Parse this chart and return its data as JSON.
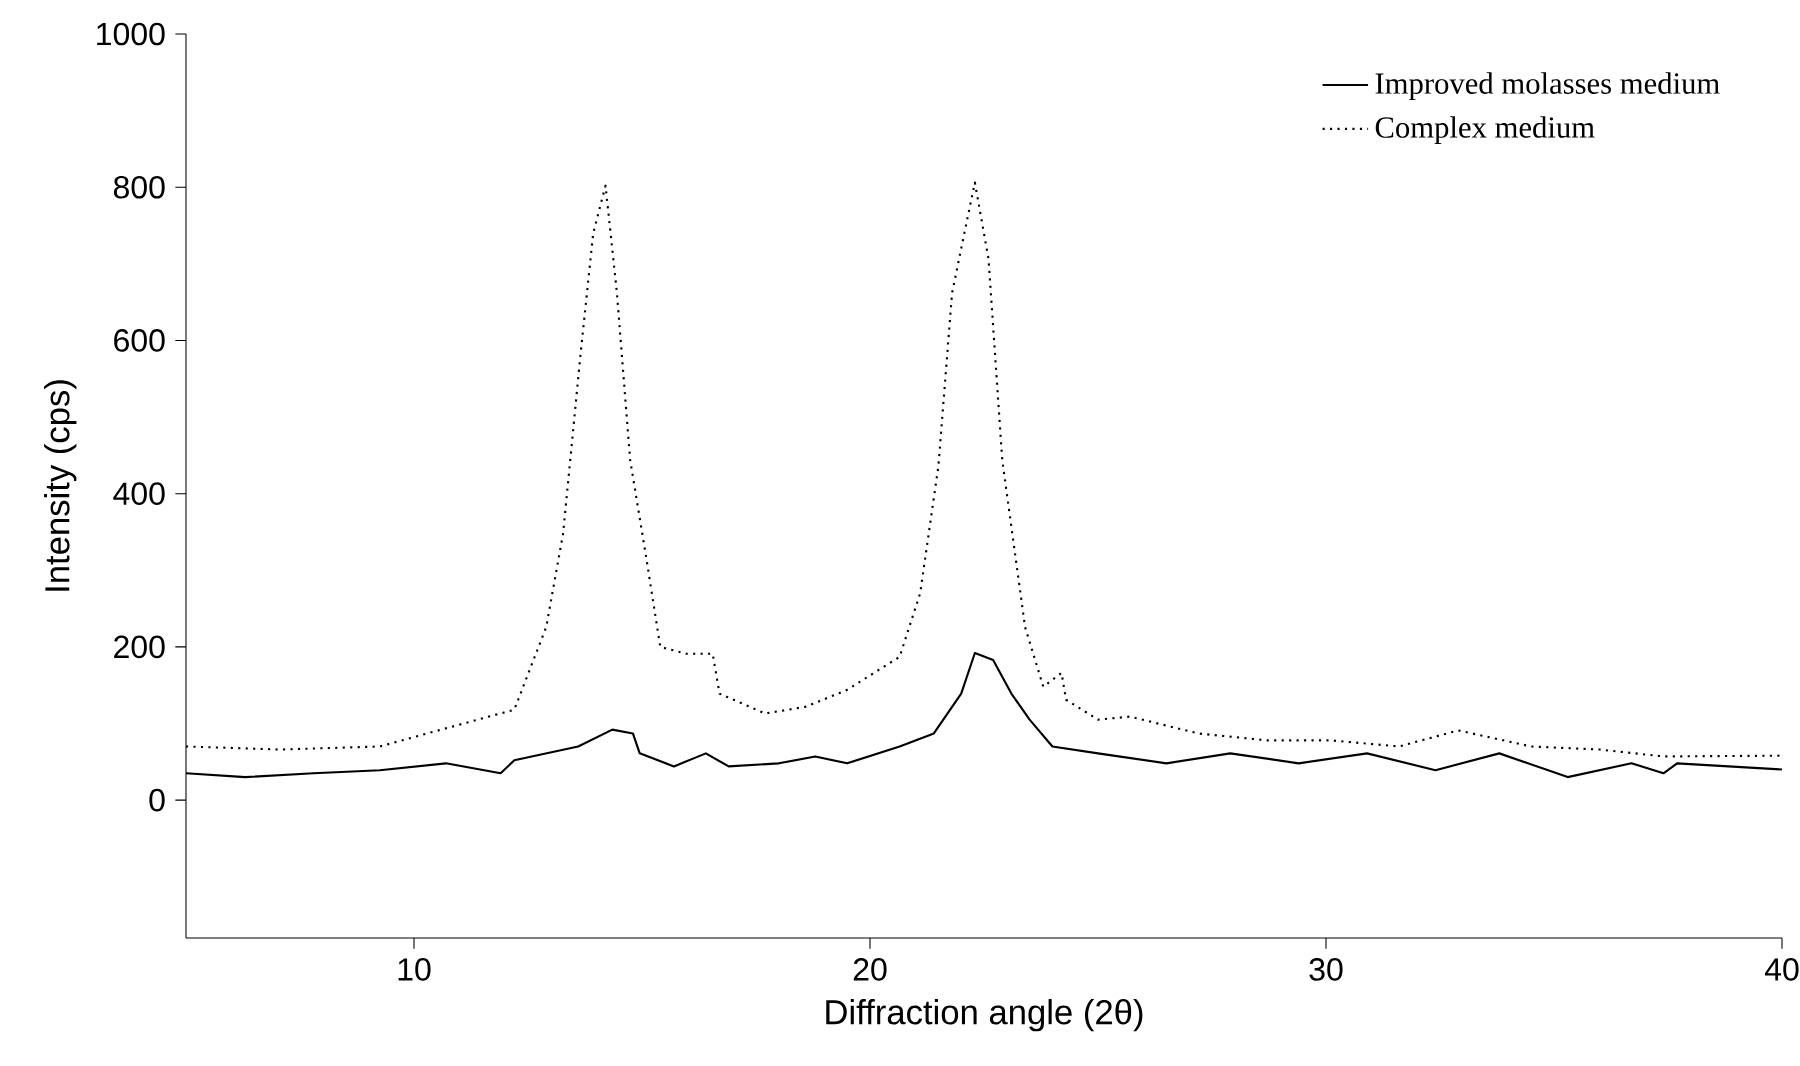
{
  "chart_data": {
    "type": "line",
    "xlabel": "Diffraction angle (2θ)",
    "ylabel": "Intensity (cps)",
    "xlim": [
      5,
      40
    ],
    "ylim": [
      -180,
      1000
    ],
    "xticks": [
      10,
      20,
      30,
      40
    ],
    "yticks": [
      0,
      200,
      400,
      600,
      800,
      1000
    ],
    "grid": false,
    "legend": "top right",
    "marker": "none",
    "series": [
      {
        "name": "Improved molasses medium",
        "color": "#000000",
        "line_style": "solid",
        "x": [
          5,
          6.3,
          7.8,
          9.25,
          10.7,
          11.9,
          12.2,
          13.6,
          14.35,
          14.8,
          14.95,
          15.7,
          16.4,
          16.9,
          18,
          18.8,
          19.5,
          20.65,
          21.4,
          22,
          22.3,
          22.7,
          23.1,
          23.5,
          24,
          25,
          26.5,
          27.9,
          29.4,
          30.9,
          32.4,
          33.8,
          35.3,
          36.7,
          37.4,
          37.7,
          40
        ],
        "values": [
          35,
          30,
          35,
          39,
          48,
          35,
          52,
          70,
          92,
          87,
          61,
          44,
          61,
          44,
          48,
          57,
          48,
          70,
          87,
          139,
          192,
          183,
          139,
          105,
          70,
          61,
          48,
          61,
          48,
          61,
          39,
          61,
          30,
          48,
          35,
          48,
          40
        ]
      },
      {
        "name": "Complex medium",
        "color": "#000000",
        "line_style": "dotted",
        "x": [
          5,
          7.06,
          9.25,
          11.15,
          12.2,
          12.4,
          12.9,
          13.27,
          13.64,
          13.93,
          14.2,
          14.45,
          14.74,
          15.1,
          15.4,
          15.97,
          16.55,
          16.7,
          17.7,
          18.6,
          19.5,
          20.65,
          21.1,
          21.5,
          21.8,
          22.1,
          22.3,
          22.6,
          22.9,
          23.4,
          23.8,
          24.2,
          24.3,
          25,
          25.7,
          27.2,
          28.7,
          30.1,
          31.6,
          32.9,
          34.5,
          36,
          37.4,
          40
        ],
        "values": [
          70,
          66,
          70,
          101,
          118,
          149,
          226,
          348,
          575,
          740,
          802,
          662,
          444,
          314,
          200,
          191,
          191,
          139,
          113,
          122,
          144,
          187,
          270,
          436,
          662,
          749,
          806,
          706,
          444,
          226,
          148,
          166,
          131,
          105,
          109,
          87,
          78,
          78,
          70,
          91,
          70,
          66,
          57,
          58
        ]
      }
    ]
  }
}
